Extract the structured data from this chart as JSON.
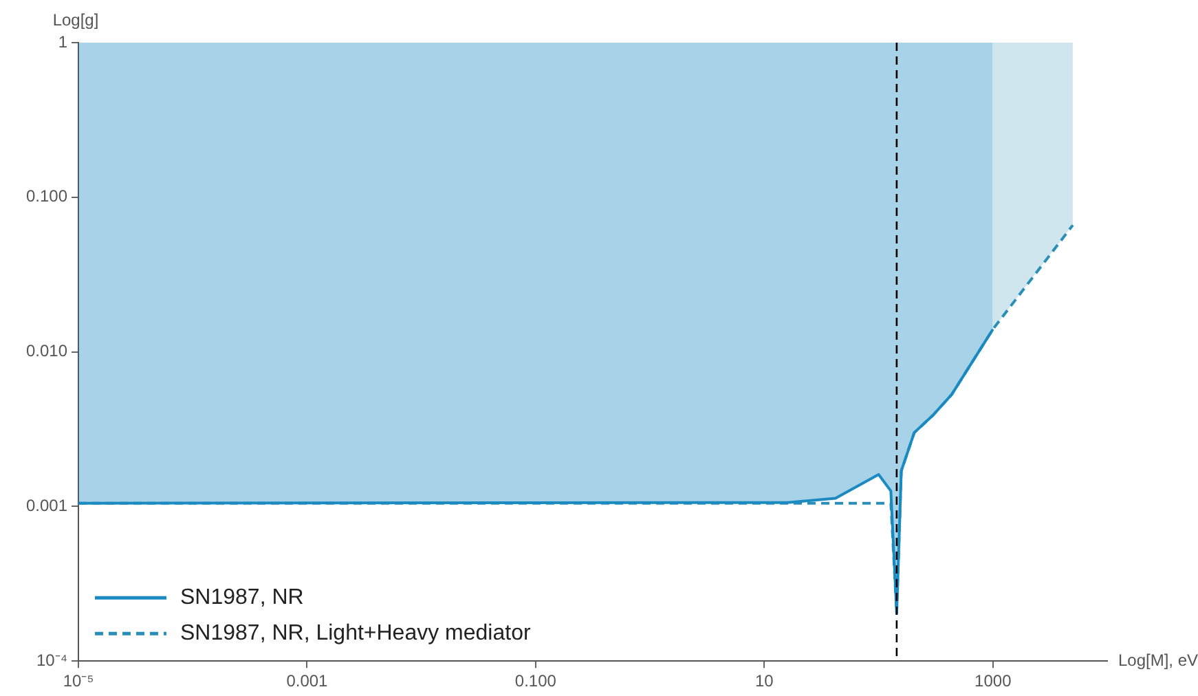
{
  "chart_data": {
    "type": "line",
    "xlabel": "Log[M], eV",
    "ylabel": "Log[g]",
    "log": "xy",
    "xlim": [
      1e-05,
      10000
    ],
    "ylim": [
      0.0001,
      1
    ],
    "xticks": [
      {
        "value": 1e-05,
        "label": "10⁻⁵"
      },
      0.001,
      {
        "value": 0.1,
        "label": "0.100"
      },
      10,
      1000
    ],
    "yticks": [
      {
        "value": 0.0001,
        "label": "10⁻⁴"
      },
      0.001,
      {
        "value": 0.01,
        "label": "0.010"
      },
      {
        "value": 0.1,
        "label": "0.100"
      },
      1
    ],
    "legend": "bottom left",
    "grid": false,
    "ref_lines": [
      {
        "axis": "x",
        "value": 144,
        "color": "#000000",
        "line_style": "dashed"
      }
    ],
    "series": [
      {
        "name": "SN1987, NR",
        "color": "#1a8ac0",
        "line_style": "solid",
        "x": [
          1e-05,
          16,
          42,
          100,
          128,
          144,
          158,
          205,
          300,
          436,
          1000
        ],
        "values": [
          0.00105,
          0.00106,
          0.00113,
          0.00161,
          0.00126,
          0.000204,
          0.0017,
          0.003,
          0.0039,
          0.0053,
          0.014
        ],
        "lower": [
          0.00105,
          0.00106,
          0.00113,
          0.00161,
          0.00126,
          0.000204,
          0.0017,
          0.003,
          0.0039,
          0.0053,
          0.014
        ],
        "upper": [
          1,
          1,
          1,
          1,
          1,
          1,
          1,
          1,
          1,
          1,
          1
        ]
      },
      {
        "name": "SN1987, NR, Light+Heavy mediator",
        "color": "#2a8fb8",
        "line_style": "dashed",
        "x": [
          1e-05,
          128,
          144,
          158,
          205,
          300,
          436,
          1000,
          5000
        ],
        "values": [
          0.00105,
          0.00105,
          0.000204,
          0.0017,
          0.003,
          0.0039,
          0.0053,
          0.014,
          0.066
        ],
        "lower": [
          null,
          null,
          null,
          null,
          null,
          null,
          null,
          0.014,
          0.066
        ],
        "upper": [
          null,
          null,
          null,
          null,
          null,
          null,
          null,
          1,
          1
        ]
      }
    ]
  }
}
